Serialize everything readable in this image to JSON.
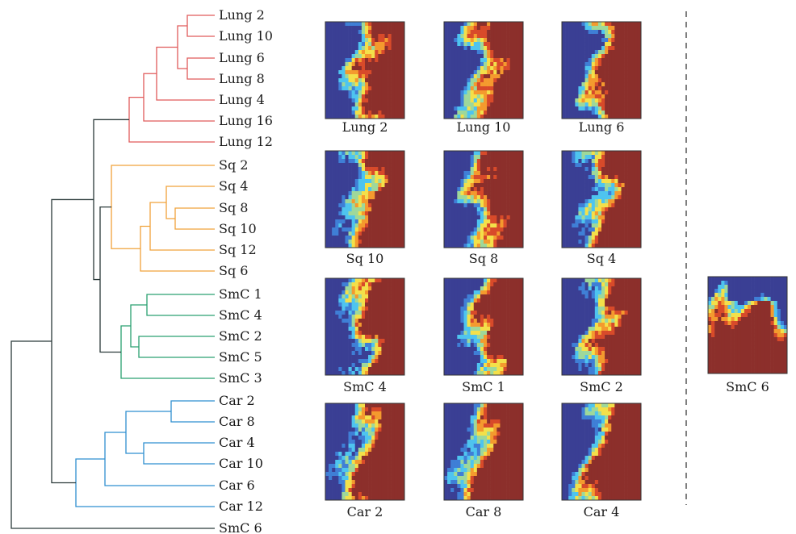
{
  "dendrogram": {
    "colors": {
      "lung": "#e05a5a",
      "sq": "#f0a23a",
      "smc": "#2aa070",
      "car": "#2f8fd0",
      "root": "#2b3a3a"
    },
    "leaves": [
      {
        "label": "Lung 2",
        "group": "lung"
      },
      {
        "label": "Lung 10",
        "group": "lung"
      },
      {
        "label": "Lung 6",
        "group": "lung"
      },
      {
        "label": "Lung 8",
        "group": "lung"
      },
      {
        "label": "Lung 4",
        "group": "lung"
      },
      {
        "label": "Lung 16",
        "group": "lung"
      },
      {
        "label": "Lung 12",
        "group": "lung"
      },
      {
        "label": "Sq 2",
        "group": "sq"
      },
      {
        "label": "Sq 4",
        "group": "sq"
      },
      {
        "label": "Sq 8",
        "group": "sq"
      },
      {
        "label": "Sq 10",
        "group": "sq"
      },
      {
        "label": "Sq 12",
        "group": "sq"
      },
      {
        "label": "Sq 6",
        "group": "sq"
      },
      {
        "label": "SmC 1",
        "group": "smc"
      },
      {
        "label": "SmC 4",
        "group": "smc"
      },
      {
        "label": "SmC 2",
        "group": "smc"
      },
      {
        "label": "SmC 5",
        "group": "smc"
      },
      {
        "label": "SmC 3",
        "group": "smc"
      },
      {
        "label": "Car 2",
        "group": "car"
      },
      {
        "label": "Car 8",
        "group": "car"
      },
      {
        "label": "Car 4",
        "group": "car"
      },
      {
        "label": "Car 10",
        "group": "car"
      },
      {
        "label": "Car 6",
        "group": "car"
      },
      {
        "label": "Car 12",
        "group": "car"
      },
      {
        "label": "SmC 6",
        "group": "root"
      }
    ]
  },
  "tiles": {
    "colormap": [
      "#3a3f94",
      "#3f7fd6",
      "#4ec4ef",
      "#9ed89a",
      "#f3e04a",
      "#f49a2e",
      "#d84a2a",
      "#8c2f2b"
    ],
    "rows": [
      [
        {
          "label": "Lung 2"
        },
        {
          "label": "Lung 10"
        },
        {
          "label": "Lung 6"
        }
      ],
      [
        {
          "label": "Sq 10"
        },
        {
          "label": "Sq 8"
        },
        {
          "label": "Sq 4"
        }
      ],
      [
        {
          "label": "SmC 4"
        },
        {
          "label": "SmC 1"
        },
        {
          "label": "SmC 2"
        }
      ],
      [
        {
          "label": "Car 2"
        },
        {
          "label": "Car 8"
        },
        {
          "label": "Car 4"
        }
      ]
    ],
    "outlier": {
      "label": "SmC 6"
    }
  }
}
